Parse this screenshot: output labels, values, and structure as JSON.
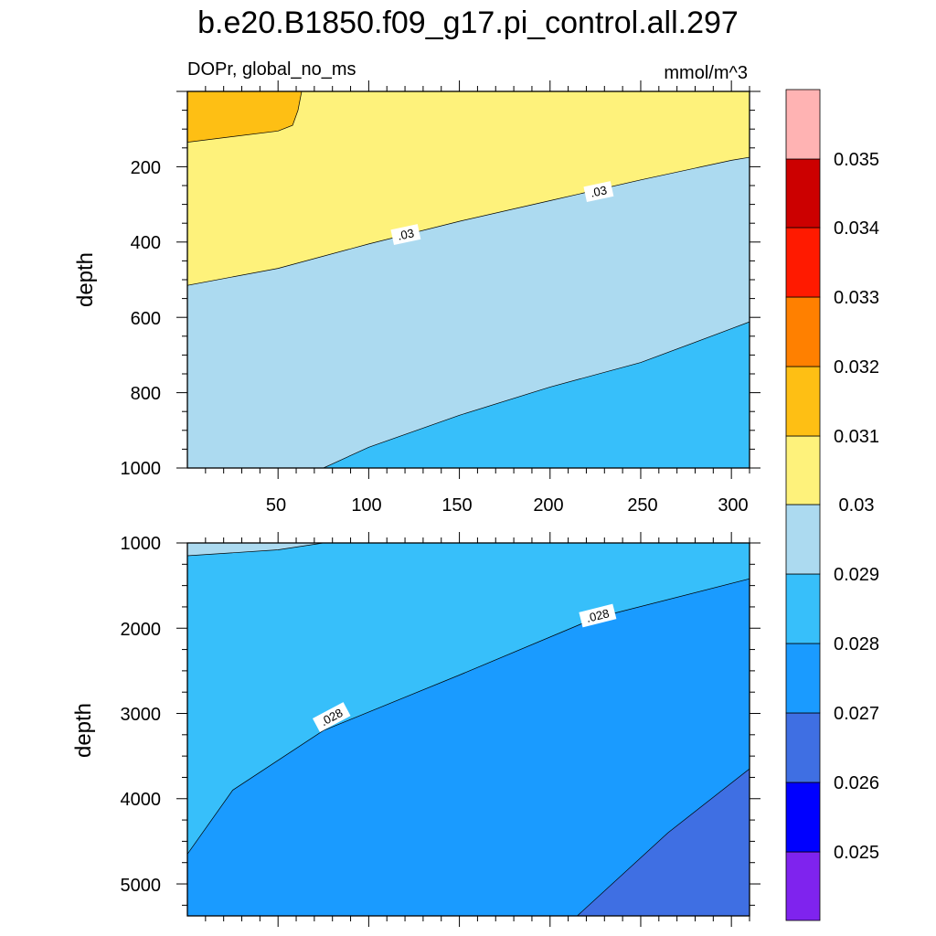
{
  "chart_data": {
    "type": "contour",
    "title": "b.e20.B1850.f09_g17.pi_control.all.297",
    "variable_label": "DOPr, global_no_ms",
    "units_label": "mmol/m^3",
    "colors": {
      "below_0_025": "#7f23ee",
      "0_025_to_0_026": "#0000ff",
      "0_026_to_0_027": "#3f6fe3",
      "0_027_to_0_028": "#1a9bff",
      "0_028_to_0_029": "#37bffa",
      "0_029_to_0_03": "#acdaf0",
      "0_03_to_0_031": "#fef27b",
      "0_031_to_0_032": "#febf14",
      "0_032_to_0_033": "#ff8000",
      "0_033_to_0_034": "#ff1a00",
      "0_034_to_0_035": "#cc0000",
      "above_0_035": "#ffb3b3"
    },
    "colorbar": {
      "labels": [
        "0.025",
        "0.026",
        "0.027",
        "0.028",
        "0.029",
        "0.03",
        "0.031",
        "0.032",
        "0.033",
        "0.034",
        "0.035"
      ]
    },
    "upper_panel": {
      "ylabel": "depth",
      "ylim": [
        0,
        1000
      ],
      "xlim": [
        0,
        310
      ],
      "ytick_labels": [
        "200",
        "400",
        "600",
        "800",
        "1000"
      ],
      "xtick_labels": [
        "50",
        "100",
        "150",
        "200",
        "250",
        "300"
      ],
      "contour_labels": [
        ".03",
        ".03"
      ],
      "contours": [
        {
          "level": 0.031,
          "points": [
            [
              0,
              135
            ],
            [
              50,
              105
            ],
            [
              58,
              90
            ],
            [
              61,
              50
            ],
            [
              63,
              0
            ]
          ]
        },
        {
          "level": 0.03,
          "points": [
            [
              0,
              515
            ],
            [
              50,
              470
            ],
            [
              100,
              405
            ],
            [
              150,
              345
            ],
            [
              200,
              290
            ],
            [
              250,
              235
            ],
            [
              300,
              183
            ],
            [
              310,
              175
            ]
          ]
        },
        {
          "level": 0.029,
          "points": [
            [
              75,
              1000
            ],
            [
              100,
              945
            ],
            [
              150,
              860
            ],
            [
              200,
              785
            ],
            [
              250,
              720
            ],
            [
              300,
              630
            ],
            [
              310,
              612
            ]
          ]
        }
      ]
    },
    "lower_panel": {
      "ylabel": "depth",
      "ylim": [
        1000,
        5375
      ],
      "xlim": [
        0,
        310
      ],
      "ytick_labels": [
        "1000",
        "2000",
        "3000",
        "4000",
        "5000"
      ],
      "contour_labels": [
        ".028",
        ".028"
      ],
      "contours": [
        {
          "level": 0.029,
          "points": [
            [
              0,
              1150
            ],
            [
              50,
              1080
            ],
            [
              75,
              1000
            ]
          ]
        },
        {
          "level": 0.028,
          "points": [
            [
              0,
              4650
            ],
            [
              25,
              3900
            ],
            [
              75,
              3200
            ],
            [
              150,
              2550
            ],
            [
              225,
              1880
            ],
            [
              310,
              1420
            ]
          ]
        },
        {
          "level": 0.027,
          "points": [
            [
              215,
              5375
            ],
            [
              265,
              4400
            ],
            [
              310,
              3650
            ]
          ]
        }
      ]
    }
  }
}
